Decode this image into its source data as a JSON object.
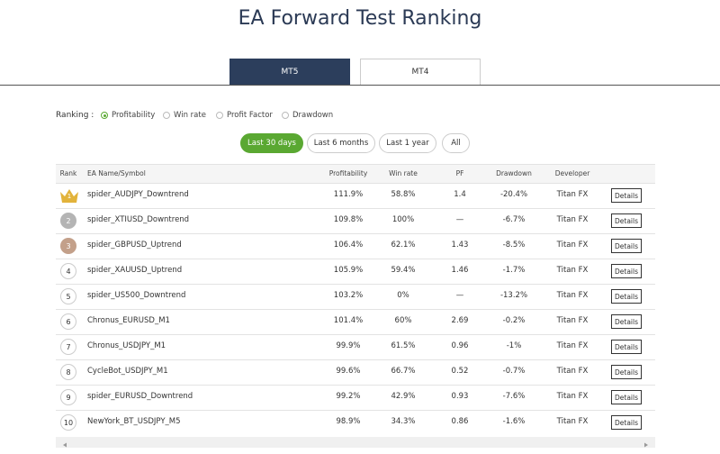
{
  "header": {
    "title": "EA Forward Test Ranking"
  },
  "tabs": [
    "MT5",
    "MT4"
  ],
  "ranking": {
    "label": "Ranking :",
    "options": [
      "Profitability",
      "Win rate",
      "Profit Factor",
      "Drawdown"
    ]
  },
  "periods": [
    "Last 30 days",
    "Last 6 months",
    "Last 1 year",
    "All"
  ],
  "table": {
    "columns": [
      "Rank",
      "EA Name/Symbol",
      "Profitability",
      "Win rate",
      "PF",
      "Drawdown",
      "Developer"
    ],
    "rows": [
      [
        "1",
        "spider_AUDJPY_Downtrend",
        "111.9%",
        "58.8%",
        "1.4",
        "-20.4%",
        "Titan FX",
        "Details"
      ],
      [
        "2",
        "spider_XTIUSD_Downtrend",
        "109.8%",
        "100%",
        "—",
        "-6.7%",
        "Titan FX",
        "Details"
      ],
      [
        "3",
        "spider_GBPUSD_Uptrend",
        "106.4%",
        "62.1%",
        "1.43",
        "-8.5%",
        "Titan FX",
        "Details"
      ],
      [
        "4",
        "spider_XAUUSD_Uptrend",
        "105.9%",
        "59.4%",
        "1.46",
        "-1.7%",
        "Titan FX",
        "Details"
      ],
      [
        "5",
        "spider_US500_Downtrend",
        "103.2%",
        "0%",
        "—",
        "-13.2%",
        "Titan FX",
        "Details"
      ],
      [
        "6",
        "Chronus_EURUSD_M1",
        "101.4%",
        "60%",
        "2.69",
        "-0.2%",
        "Titan FX",
        "Details"
      ],
      [
        "7",
        "Chronus_USDJPY_M1",
        "99.9%",
        "61.5%",
        "0.96",
        "-1%",
        "Titan FX",
        "Details"
      ],
      [
        "8",
        "CycleBot_USDJPY_M1",
        "99.6%",
        "66.7%",
        "0.52",
        "-0.7%",
        "Titan FX",
        "Details"
      ],
      [
        "9",
        "spider_EURUSD_Downtrend",
        "99.2%",
        "42.9%",
        "0.93",
        "-7.6%",
        "Titan FX",
        "Details"
      ],
      [
        "10",
        "NewYork_BT_USDJPY_M5",
        "98.9%",
        "34.3%",
        "0.86",
        "-1.6%",
        "Titan FX",
        "Details"
      ]
    ]
  }
}
